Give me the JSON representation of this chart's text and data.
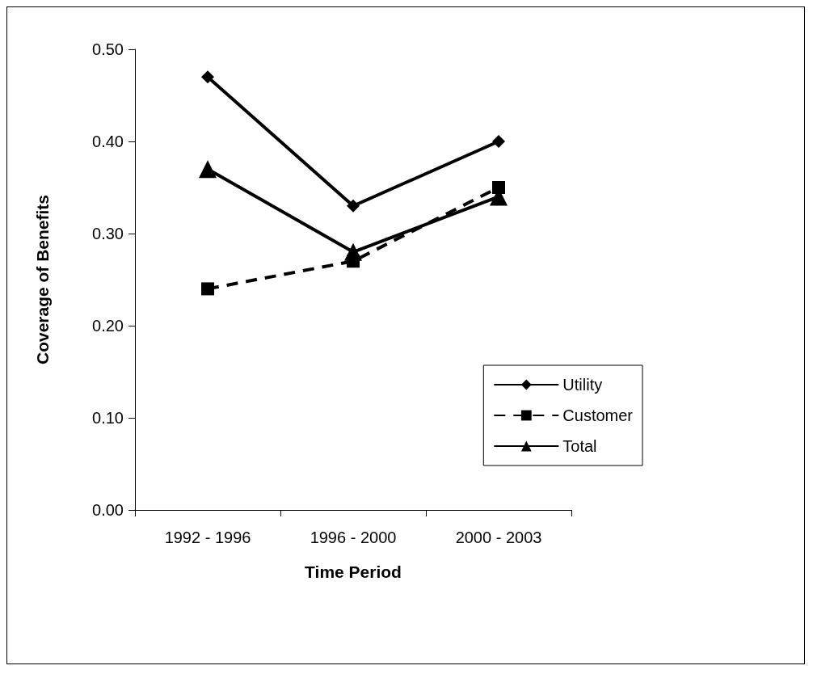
{
  "chart_data": {
    "type": "line",
    "xlabel": "Time Period",
    "ylabel": "Coverage of Benefits",
    "categories": [
      "1992 - 1996",
      "1996 - 2000",
      "2000 - 2003"
    ],
    "series": [
      {
        "name": "Utility",
        "color": "#000000",
        "values": [
          0.47,
          0.33,
          0.4
        ],
        "marker": "diamond",
        "line_style": "solid"
      },
      {
        "name": "Customer",
        "color": "#000000",
        "values": [
          0.24,
          0.27,
          0.35
        ],
        "marker": "square",
        "line_style": "dashed"
      },
      {
        "name": "Total",
        "color": "#000000",
        "values": [
          0.37,
          0.28,
          0.34
        ],
        "marker": "triangle",
        "line_style": "solid"
      }
    ],
    "ylim": [
      0,
      0.5
    ],
    "yticks": [
      {
        "value": 0,
        "label": "0.00"
      },
      {
        "value": 0.1,
        "label": "0.10"
      },
      {
        "value": 0.2,
        "label": "0.20"
      },
      {
        "value": 0.3,
        "label": "0.30"
      },
      {
        "value": 0.4,
        "label": "0.40"
      },
      {
        "value": 0.5,
        "label": "0.50"
      }
    ],
    "grid": false,
    "legend": "bottom right"
  }
}
